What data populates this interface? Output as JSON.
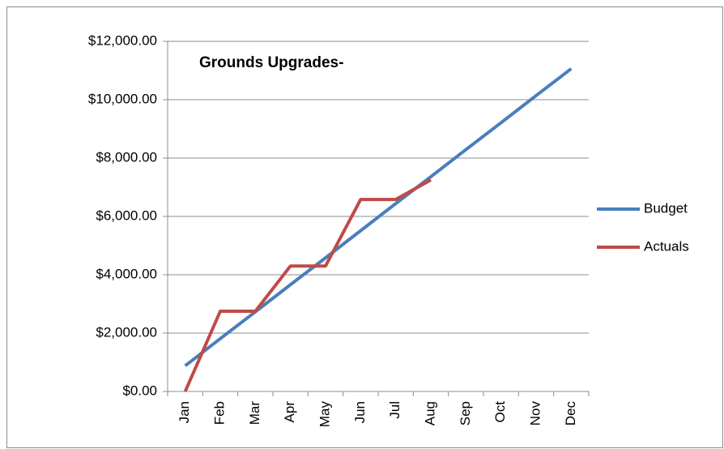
{
  "chart_data": {
    "type": "line",
    "title": "Grounds Upgrades-",
    "categories": [
      "Jan",
      "Feb",
      "Mar",
      "Apr",
      "May",
      "Jun",
      "Jul",
      "Aug",
      "Sep",
      "Oct",
      "Nov",
      "Dec"
    ],
    "series": [
      {
        "name": "Budget",
        "color": "#4a7ebb",
        "values": [
          880,
          1810,
          2730,
          3660,
          4580,
          5510,
          6440,
          7360,
          8290,
          9210,
          10140,
          11060
        ]
      },
      {
        "name": "Actuals",
        "color": "#be4b48",
        "values": [
          0,
          2750,
          2750,
          4300,
          4300,
          6580,
          6580,
          7250,
          null,
          null,
          null,
          null
        ]
      }
    ],
    "ylim": [
      0,
      12000
    ],
    "yticks": [
      {
        "value": 0,
        "label": "$0.00"
      },
      {
        "value": 2000,
        "label": "$2,000.00"
      },
      {
        "value": 4000,
        "label": "$4,000.00"
      },
      {
        "value": 6000,
        "label": "$6,000.00"
      },
      {
        "value": 8000,
        "label": "$8,000.00"
      },
      {
        "value": 10000,
        "label": "$10,000.00"
      },
      {
        "value": 12000,
        "label": "$12,000.00"
      }
    ],
    "grid": true,
    "legend": "right"
  }
}
